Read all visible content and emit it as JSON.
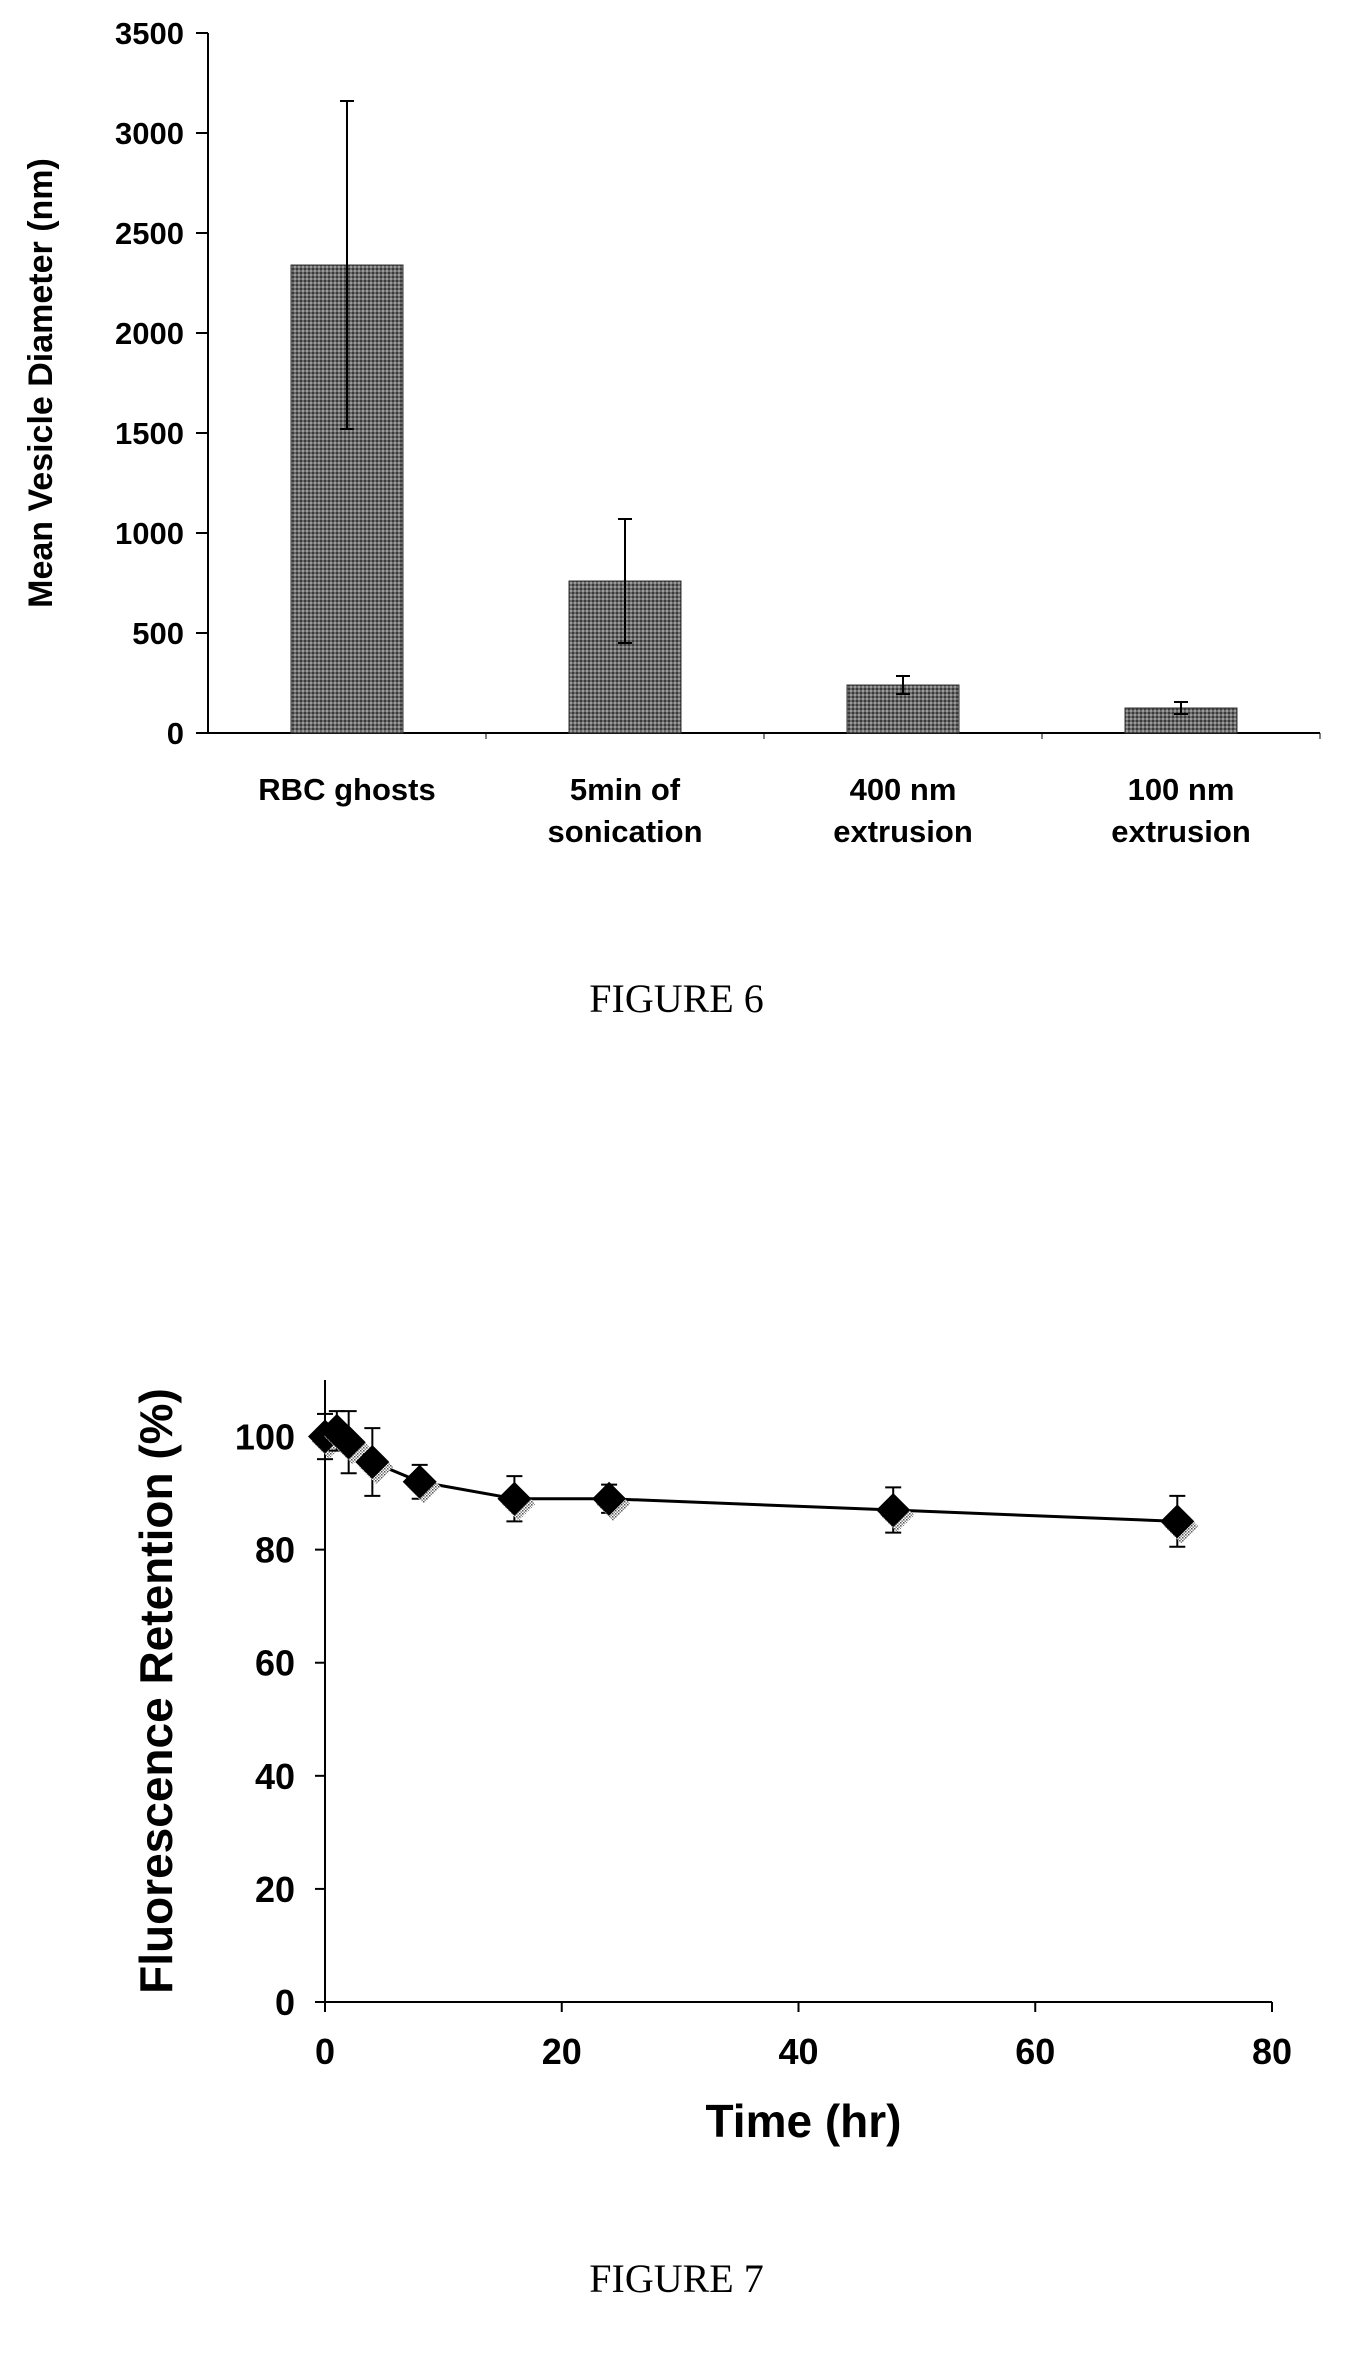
{
  "figures": [
    {
      "caption": "FIGURE 6"
    },
    {
      "caption": "FIGURE 7"
    }
  ],
  "chart_data": [
    {
      "type": "bar",
      "title": "",
      "xlabel": "",
      "ylabel": "Mean Vesicle Diameter (nm)",
      "ylim": [
        0,
        3500
      ],
      "yticks": [
        "0",
        "500",
        "1000",
        "1500",
        "2000",
        "2500",
        "3000",
        "3500"
      ],
      "categories": [
        [
          "RBC ghosts"
        ],
        [
          "5min of",
          "sonication"
        ],
        [
          "400 nm",
          "extrusion"
        ],
        [
          "100 nm",
          "extrusion"
        ]
      ],
      "values": [
        2340,
        760,
        240,
        125
      ],
      "error": [
        820,
        310,
        45,
        30
      ],
      "bar_fill": "#6a6a6a",
      "grid": false
    },
    {
      "type": "line",
      "title": "",
      "xlabel": "Time (hr)",
      "ylabel": "Fluorescence Retention (%)",
      "xlim": [
        0,
        80
      ],
      "ylim": [
        0,
        110
      ],
      "xticks": [
        "0",
        "20",
        "40",
        "60",
        "80"
      ],
      "yticks": [
        "0",
        "20",
        "40",
        "60",
        "80",
        "100"
      ],
      "x": [
        0,
        1,
        2,
        4,
        8,
        16,
        24,
        48,
        72
      ],
      "y": [
        100,
        101,
        99,
        95.5,
        92,
        89,
        89,
        87,
        85
      ],
      "error": [
        4,
        3.5,
        5.5,
        6,
        3,
        4,
        2.5,
        4,
        4.5
      ],
      "marker": "diamond",
      "color": "#000000",
      "grid": false
    }
  ]
}
